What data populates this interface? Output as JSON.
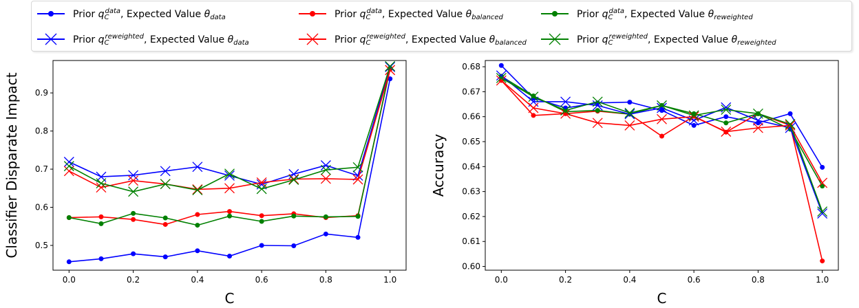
{
  "legend": {
    "entries": [
      {
        "label": "Prior q_C^data, Expected Value θ_data",
        "color": "#0000ff",
        "marker": "dot",
        "parts": [
          [
            "Prior ",
            ""
          ],
          [
            "q",
            "it"
          ],
          [
            "C",
            "itsub"
          ],
          [
            "data",
            "itsup"
          ],
          [
            ", Expected Value ",
            ""
          ],
          [
            "θ",
            "it"
          ],
          [
            "data",
            "itsub"
          ]
        ]
      },
      {
        "label": "Prior q_C^data, Expected Value θ_balanced",
        "color": "#ff0000",
        "marker": "dot",
        "parts": [
          [
            "Prior ",
            ""
          ],
          [
            "q",
            "it"
          ],
          [
            "C",
            "itsub"
          ],
          [
            "data",
            "itsup"
          ],
          [
            ", Expected Value ",
            ""
          ],
          [
            "θ",
            "it"
          ],
          [
            "balanced",
            "itsub"
          ]
        ]
      },
      {
        "label": "Prior q_C^data, Expected Value θ_reweighted",
        "color": "#008000",
        "marker": "dot",
        "parts": [
          [
            "Prior ",
            ""
          ],
          [
            "q",
            "it"
          ],
          [
            "C",
            "itsub"
          ],
          [
            "data",
            "itsup"
          ],
          [
            ", Expected Value ",
            ""
          ],
          [
            "θ",
            "it"
          ],
          [
            "reweighted",
            "itsub"
          ]
        ]
      },
      {
        "label": "Prior q_C^reweighted, Expected Value θ_data",
        "color": "#0000ff",
        "marker": "x",
        "parts": [
          [
            "Prior ",
            ""
          ],
          [
            "q",
            "it"
          ],
          [
            "C",
            "itsub"
          ],
          [
            "reweighted",
            "itsup"
          ],
          [
            ", Expected Value ",
            ""
          ],
          [
            "θ",
            "it"
          ],
          [
            "data",
            "itsub"
          ]
        ]
      },
      {
        "label": "Prior q_C^reweighted, Expected Value θ_balanced",
        "color": "#ff0000",
        "marker": "x",
        "parts": [
          [
            "Prior ",
            ""
          ],
          [
            "q",
            "it"
          ],
          [
            "C",
            "itsub"
          ],
          [
            "reweighted",
            "itsup"
          ],
          [
            ", Expected Value ",
            ""
          ],
          [
            "θ",
            "it"
          ],
          [
            "balanced",
            "itsub"
          ]
        ]
      },
      {
        "label": "Prior q_C^reweighted, Expected Value θ_reweighted",
        "color": "#008000",
        "marker": "x",
        "parts": [
          [
            "Prior ",
            ""
          ],
          [
            "q",
            "it"
          ],
          [
            "C",
            "itsub"
          ],
          [
            "reweighted",
            "itsup"
          ],
          [
            ", Expected Value ",
            ""
          ],
          [
            "θ",
            "it"
          ],
          [
            "reweighted",
            "itsub"
          ]
        ]
      }
    ]
  },
  "chart_data": [
    {
      "type": "line",
      "xlabel": "C",
      "ylabel": "Classifier Disparate Impact",
      "xlim": [
        -0.05,
        1.05
      ],
      "ylim": [
        0.435,
        0.985
      ],
      "xticks": [
        0.0,
        0.2,
        0.4,
        0.6,
        0.8,
        1.0
      ],
      "xtick_labels": [
        "0.0",
        "0.2",
        "0.4",
        "0.6",
        "0.8",
        "1.0"
      ],
      "yticks": [
        0.5,
        0.6,
        0.7,
        0.8,
        0.9
      ],
      "ytick_labels": [
        "0.5",
        "0.6",
        "0.7",
        "0.8",
        "0.9"
      ],
      "x": [
        0.0,
        0.1,
        0.2,
        0.3,
        0.4,
        0.5,
        0.6,
        0.7,
        0.8,
        0.9,
        1.0
      ],
      "series": [
        {
          "legend_index": 0,
          "color": "#0000ff",
          "marker": "dot",
          "values": [
            0.457,
            0.465,
            0.478,
            0.47,
            0.486,
            0.472,
            0.5,
            0.499,
            0.53,
            0.521,
            0.937
          ]
        },
        {
          "legend_index": 1,
          "color": "#ff0000",
          "marker": "dot",
          "values": [
            0.573,
            0.575,
            0.568,
            0.555,
            0.581,
            0.589,
            0.578,
            0.583,
            0.573,
            0.578,
            0.962
          ]
        },
        {
          "legend_index": 2,
          "color": "#008000",
          "marker": "dot",
          "values": [
            0.573,
            0.557,
            0.584,
            0.572,
            0.553,
            0.577,
            0.563,
            0.577,
            0.575,
            0.576,
            0.965
          ]
        },
        {
          "legend_index": 3,
          "color": "#0000ff",
          "marker": "x",
          "values": [
            0.719,
            0.68,
            0.684,
            0.695,
            0.706,
            0.683,
            0.66,
            0.687,
            0.71,
            0.683,
            0.968
          ]
        },
        {
          "legend_index": 4,
          "color": "#ff0000",
          "marker": "x",
          "values": [
            0.695,
            0.652,
            0.67,
            0.661,
            0.647,
            0.65,
            0.665,
            0.674,
            0.675,
            0.673,
            0.96
          ]
        },
        {
          "legend_index": 5,
          "color": "#008000",
          "marker": "x",
          "values": [
            0.708,
            0.663,
            0.641,
            0.661,
            0.645,
            0.688,
            0.648,
            0.672,
            0.698,
            0.705,
            0.97
          ]
        }
      ]
    },
    {
      "type": "line",
      "xlabel": "C",
      "ylabel": "Accuracy",
      "xlim": [
        -0.05,
        1.05
      ],
      "ylim": [
        0.5985,
        0.6825
      ],
      "xticks": [
        0.0,
        0.2,
        0.4,
        0.6,
        0.8,
        1.0
      ],
      "xtick_labels": [
        "0.0",
        "0.2",
        "0.4",
        "0.6",
        "0.8",
        "1.0"
      ],
      "yticks": [
        0.6,
        0.61,
        0.62,
        0.63,
        0.64,
        0.65,
        0.66,
        0.67,
        0.68
      ],
      "ytick_labels": [
        "0.60",
        "0.61",
        "0.62",
        "0.63",
        "0.64",
        "0.65",
        "0.66",
        "0.67",
        "0.68"
      ],
      "x": [
        0.0,
        0.1,
        0.2,
        0.3,
        0.4,
        0.5,
        0.6,
        0.7,
        0.8,
        0.9,
        1.0
      ],
      "series": [
        {
          "legend_index": 0,
          "color": "#0000ff",
          "marker": "dot",
          "values": [
            0.6805,
            0.6675,
            0.6635,
            0.6655,
            0.6658,
            0.6625,
            0.6565,
            0.66,
            0.6575,
            0.6612,
            0.6397
          ]
        },
        {
          "legend_index": 1,
          "color": "#ff0000",
          "marker": "dot",
          "values": [
            0.6745,
            0.6605,
            0.6612,
            0.6622,
            0.661,
            0.6522,
            0.6602,
            0.6538,
            0.6612,
            0.6565,
            0.6022
          ]
        },
        {
          "legend_index": 2,
          "color": "#008000",
          "marker": "dot",
          "values": [
            0.6762,
            0.6683,
            0.662,
            0.6625,
            0.661,
            0.6645,
            0.6612,
            0.6575,
            0.6612,
            0.655,
            0.6322
          ]
        },
        {
          "legend_index": 3,
          "color": "#0000ff",
          "marker": "x",
          "values": [
            0.6765,
            0.666,
            0.666,
            0.6645,
            0.661,
            0.6635,
            0.6585,
            0.6637,
            0.6585,
            0.6555,
            0.6212
          ]
        },
        {
          "legend_index": 4,
          "color": "#ff0000",
          "marker": "x",
          "values": [
            0.6745,
            0.6635,
            0.6612,
            0.6575,
            0.6565,
            0.659,
            0.66,
            0.654,
            0.6555,
            0.6565,
            0.6335
          ]
        },
        {
          "legend_index": 5,
          "color": "#008000",
          "marker": "x",
          "values": [
            0.6755,
            0.668,
            0.6625,
            0.666,
            0.6615,
            0.6645,
            0.6605,
            0.6628,
            0.6612,
            0.657,
            0.622
          ]
        }
      ]
    }
  ]
}
